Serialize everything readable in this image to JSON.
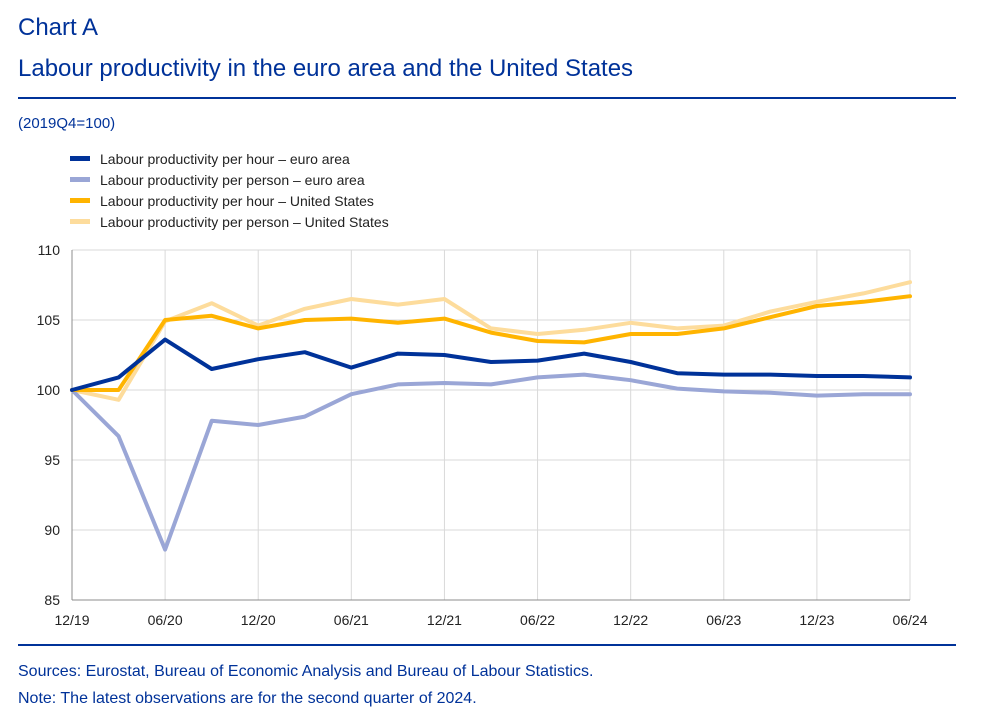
{
  "header": {
    "label": "Chart A",
    "title": "Labour productivity in the euro area and the United States",
    "unit": "(2019Q4=100)"
  },
  "footer": {
    "sources": "Sources: Eurostat, Bureau of Economic Analysis and Bureau of Labour Statistics.",
    "note": "Note: The latest observations are for the second quarter of 2024."
  },
  "colors": {
    "accent": "#003299",
    "grid": "#d9d9d9"
  },
  "chart_data": {
    "type": "line",
    "title": "Labour productivity in the euro area and the United States",
    "ylabel": "2019Q4=100",
    "xlabel": "",
    "ylim": [
      85,
      110
    ],
    "yticks": [
      85,
      90,
      95,
      100,
      105,
      110
    ],
    "grid": true,
    "legend_position": "top-left",
    "x": [
      "2019Q4",
      "2020Q1",
      "2020Q2",
      "2020Q3",
      "2020Q4",
      "2021Q1",
      "2021Q2",
      "2021Q3",
      "2021Q4",
      "2022Q1",
      "2022Q2",
      "2022Q3",
      "2022Q4",
      "2023Q1",
      "2023Q2",
      "2023Q3",
      "2023Q4",
      "2024Q1",
      "2024Q2"
    ],
    "xtick_labels": [
      {
        "index": 0,
        "label": "12/19"
      },
      {
        "index": 2,
        "label": "06/20"
      },
      {
        "index": 4,
        "label": "12/20"
      },
      {
        "index": 6,
        "label": "06/21"
      },
      {
        "index": 8,
        "label": "12/21"
      },
      {
        "index": 10,
        "label": "06/22"
      },
      {
        "index": 12,
        "label": "12/22"
      },
      {
        "index": 14,
        "label": "06/23"
      },
      {
        "index": 16,
        "label": "12/23"
      },
      {
        "index": 18,
        "label": "06/24"
      }
    ],
    "series": [
      {
        "name": "Labour productivity per hour – euro area",
        "color": "#003299",
        "values": [
          100.0,
          100.9,
          103.6,
          101.5,
          102.2,
          102.7,
          101.6,
          102.6,
          102.5,
          102.0,
          102.1,
          102.6,
          102.0,
          101.2,
          101.1,
          101.1,
          101.0,
          101.0,
          100.9
        ]
      },
      {
        "name": "Labour productivity per person – euro area",
        "color": "#9aa6d6",
        "values": [
          100.0,
          96.7,
          88.6,
          97.8,
          97.5,
          98.1,
          99.7,
          100.4,
          100.5,
          100.4,
          100.9,
          101.1,
          100.7,
          100.1,
          99.9,
          99.8,
          99.6,
          99.7,
          99.7
        ]
      },
      {
        "name": "Labour productivity per hour – United States",
        "color": "#ffb400",
        "values": [
          100.0,
          100.0,
          105.0,
          105.3,
          104.4,
          105.0,
          105.1,
          104.8,
          105.1,
          104.1,
          103.5,
          103.4,
          104.0,
          104.0,
          104.4,
          105.2,
          106.0,
          106.3,
          106.7
        ]
      },
      {
        "name": "Labour productivity per person – United States",
        "color": "#fddc9c",
        "values": [
          100.0,
          99.3,
          104.9,
          106.2,
          104.6,
          105.8,
          106.5,
          106.1,
          106.5,
          104.4,
          104.0,
          104.3,
          104.8,
          104.4,
          104.6,
          105.6,
          106.3,
          106.9,
          107.7
        ]
      }
    ]
  }
}
